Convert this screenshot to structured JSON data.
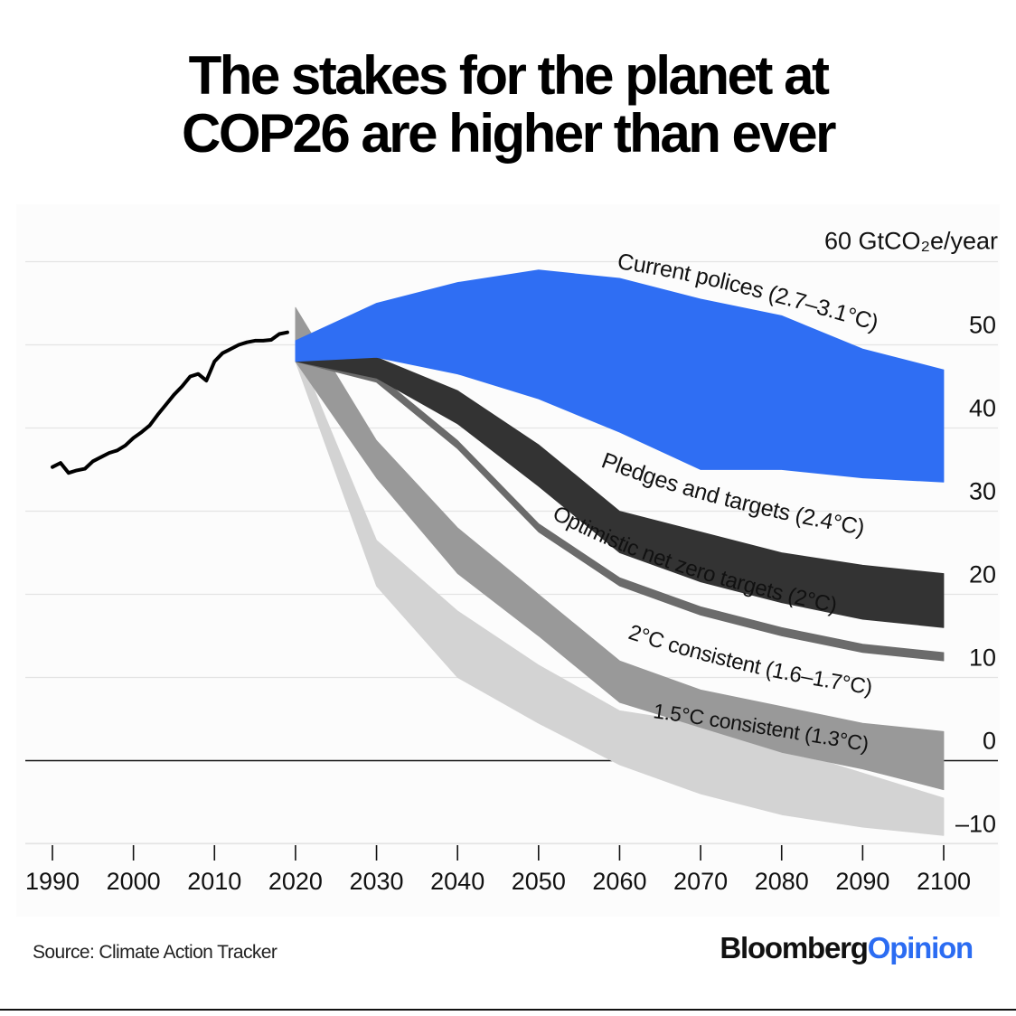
{
  "title": {
    "line1": "The stakes for the planet at",
    "line2": "COP26 are higher than ever"
  },
  "source": "Source: Climate Action Tracker",
  "brand": {
    "part1": "Bloomberg",
    "part2": "Opinion",
    "color_part2": "#2b6cf2"
  },
  "chart_data": {
    "type": "area",
    "ylim": [
      -10,
      60
    ],
    "xlim": [
      1990,
      2100
    ],
    "y_ticks": [
      60,
      50,
      40,
      30,
      20,
      10,
      0,
      -10
    ],
    "y_tick_labels": [
      "60 GtCO₂e/year",
      "50",
      "40",
      "30",
      "20",
      "10",
      "0",
      "–10"
    ],
    "x_ticks": [
      1990,
      2000,
      2010,
      2020,
      2030,
      2040,
      2050,
      2060,
      2070,
      2080,
      2090,
      2100
    ],
    "x_tick_labels": [
      "1990",
      "2000",
      "2010",
      "2020",
      "2030",
      "2040",
      "2050",
      "2060",
      "2070",
      "2080",
      "2090",
      "2100"
    ],
    "historical": {
      "x": [
        1990,
        1991,
        1992,
        1993,
        1994,
        1995,
        1996,
        1997,
        1998,
        1999,
        2000,
        2001,
        2002,
        2003,
        2004,
        2005,
        2006,
        2007,
        2008,
        2009,
        2010,
        2011,
        2012,
        2013,
        2014,
        2015,
        2016,
        2017,
        2018,
        2019
      ],
      "y": [
        35.3,
        35.8,
        34.6,
        34.9,
        35.1,
        36.0,
        36.5,
        37.0,
        37.3,
        37.9,
        38.8,
        39.5,
        40.3,
        41.6,
        42.8,
        44.0,
        45.0,
        46.2,
        46.5,
        45.7,
        48.0,
        49.0,
        49.5,
        50.0,
        50.3,
        50.5,
        50.5,
        50.6,
        51.3,
        51.5
      ],
      "color": "#000000"
    },
    "series": [
      {
        "name": "1.5°C consistent (1.3°C)",
        "color": "#d3d3d3",
        "x": [
          2020,
          2030,
          2040,
          2050,
          2060,
          2070,
          2080,
          2090,
          2100
        ],
        "upper": [
          50.0,
          26.5,
          18.0,
          11.5,
          6.0,
          4.5,
          1.5,
          -1.5,
          -4.5
        ],
        "lower": [
          48.0,
          21.0,
          10.0,
          4.5,
          -0.5,
          -4.0,
          -6.5,
          -8.0,
          -9.0
        ]
      },
      {
        "name": "2°C consistent (1.6–1.7°C)",
        "color": "#999999",
        "x": [
          2020,
          2030,
          2040,
          2050,
          2060,
          2070,
          2080,
          2090,
          2100
        ],
        "upper": [
          54.5,
          38.5,
          28.0,
          20.0,
          12.0,
          8.5,
          6.5,
          4.5,
          3.5
        ],
        "lower": [
          48.0,
          34.0,
          22.5,
          15.0,
          7.0,
          4.0,
          1.0,
          -1.0,
          -3.5
        ]
      },
      {
        "name": "Optimistic net zero targets (2°C)",
        "color": "#6b6b6b",
        "x": [
          2020,
          2030,
          2040,
          2050,
          2060,
          2070,
          2080,
          2090,
          2100
        ],
        "upper": [
          48.5,
          46.5,
          38.5,
          28.5,
          22.0,
          18.5,
          16.0,
          14.0,
          13.0
        ],
        "lower": [
          48.0,
          45.5,
          37.5,
          27.5,
          21.0,
          17.5,
          15.0,
          13.0,
          12.0
        ]
      },
      {
        "name": "Pledges and targets (2.4°C)",
        "color": "#333333",
        "x": [
          2020,
          2030,
          2040,
          2050,
          2060,
          2070,
          2080,
          2090,
          2100
        ],
        "upper": [
          48.5,
          48.5,
          44.5,
          38.0,
          30.0,
          27.5,
          25.0,
          23.5,
          22.5
        ],
        "lower": [
          48.0,
          46.0,
          40.5,
          33.0,
          25.0,
          21.5,
          19.0,
          17.0,
          16.0
        ]
      },
      {
        "name": "Current polices (2.7–3.1°C)",
        "color": "#2f6ef3",
        "x": [
          2020,
          2030,
          2040,
          2050,
          2060,
          2070,
          2080,
          2090,
          2100
        ],
        "upper": [
          50.5,
          55.0,
          57.5,
          59.0,
          58.0,
          55.5,
          53.5,
          49.5,
          47.0
        ],
        "lower": [
          48.0,
          48.5,
          46.5,
          43.5,
          39.5,
          35.0,
          35.0,
          34.0,
          33.5
        ]
      }
    ]
  }
}
